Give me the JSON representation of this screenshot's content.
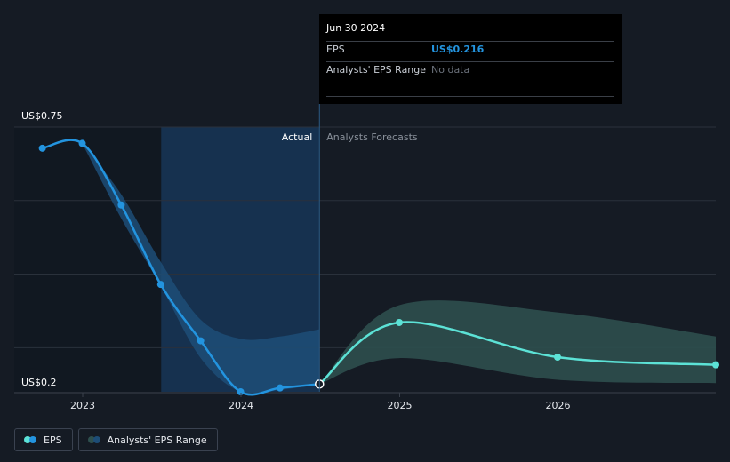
{
  "chart_data": {
    "type": "line",
    "y_axis": {
      "min_label": "US$0.2",
      "max_label": "US$0.75",
      "ylim": [
        0.2,
        0.75
      ]
    },
    "x_axis": {
      "ticks": [
        "2023",
        "2024",
        "2025",
        "2026"
      ]
    },
    "region_labels": {
      "actual": "Actual",
      "forecast": "Analysts Forecasts"
    },
    "series": [
      {
        "name": "EPS",
        "kind": "actual",
        "color": "#2394df",
        "x": [
          "2022-09-30",
          "2022-12-31",
          "2023-03-31",
          "2023-06-30",
          "2023-09-30",
          "2023-12-31",
          "2024-03-31",
          "2024-06-30"
        ],
        "values": [
          0.706,
          0.716,
          0.588,
          0.423,
          0.306,
          0.2,
          0.208,
          0.216
        ]
      },
      {
        "name": "EPS",
        "kind": "forecast",
        "color": "#5ce2d6",
        "x": [
          "2024-06-30",
          "2024-12-31",
          "2025-12-31",
          "2026-12-31"
        ],
        "values": [
          0.216,
          0.344,
          0.272,
          0.256
        ]
      }
    ],
    "ranges": [
      {
        "name": "Analysts' EPS Range",
        "kind": "past",
        "color": "#1d4d77",
        "x": [
          "2022-12-31",
          "2023-03-31",
          "2023-06-30",
          "2023-09-30",
          "2023-12-31",
          "2024-03-31",
          "2024-06-30"
        ],
        "low": [
          0.716,
          0.56,
          0.42,
          0.27,
          0.2,
          0.204,
          0.216
        ],
        "high": [
          0.716,
          0.61,
          0.47,
          0.35,
          0.31,
          0.315,
          0.33
        ]
      },
      {
        "name": "Analysts' EPS Range",
        "kind": "forecast",
        "color": "#2e4f4e",
        "x": [
          "2024-06-30",
          "2024-12-31",
          "2025-12-31",
          "2026-12-31"
        ],
        "low": [
          0.216,
          0.27,
          0.225,
          0.218
        ],
        "high": [
          0.216,
          0.38,
          0.365,
          0.315
        ]
      }
    ],
    "highlight": {
      "x": "2024-06-30",
      "value": 0.216
    }
  },
  "tooltip": {
    "date": "Jun 30 2024",
    "eps_label": "EPS",
    "eps_value": "US$0.216",
    "range_label": "Analysts' EPS Range",
    "range_value": "No data"
  },
  "legend": {
    "items": [
      {
        "label": "EPS",
        "colors": [
          "#5ce2d6",
          "#2394df"
        ]
      },
      {
        "label": "Analysts' EPS Range",
        "colors": [
          "#2e4f4e",
          "#1d4d77"
        ]
      }
    ]
  },
  "colors": {
    "background": "#151b24",
    "past_shade": "#111821",
    "actual_highlight": "#16314f",
    "gridline": "#2a313b",
    "actual_label": "#ffffff",
    "forecast_label": "#8a919b"
  }
}
